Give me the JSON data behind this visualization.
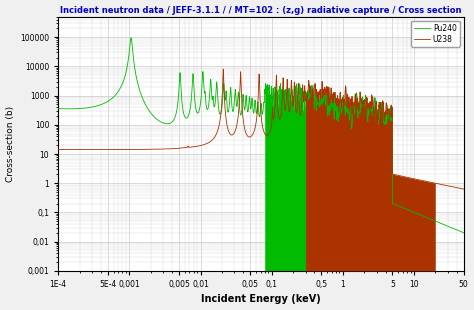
{
  "title": "Incident neutron data / JEFF-3.1.1 / / MT=102 : (z,g) radiative capture / Cross section",
  "xlabel": "Incident Energy (keV)",
  "ylabel": "Cross-section (b)",
  "title_color": "#0000cc",
  "xlabel_color": "#000000",
  "ylabel_color": "#000000",
  "bg_color": "#f0f0f0",
  "plot_bg_color": "#ffffff",
  "grid_color": "#cccccc",
  "legend_entries": [
    "Pu240",
    "U238"
  ],
  "pu240_color": "#00bb00",
  "u238_color": "#aa3300",
  "xtick_labels": [
    "1E-4",
    "5E-4",
    "0,001",
    "0,005",
    "0,01",
    "0,05",
    "0,1",
    "0,5",
    "1",
    "5",
    "10",
    "50"
  ],
  "xtick_values": [
    0.0001,
    0.0005,
    0.001,
    0.005,
    0.01,
    0.05,
    0.1,
    0.5,
    1,
    5,
    10,
    50
  ],
  "ytick_labels": [
    "0,001",
    "0,01",
    "0,1",
    "1",
    "10",
    "100",
    "1000",
    "10000",
    "100000"
  ],
  "ytick_values": [
    0.001,
    0.01,
    0.1,
    1,
    10,
    100,
    1000,
    10000,
    100000
  ],
  "xlim": [
    0.0001,
    50
  ],
  "ylim": [
    0.001,
    500000
  ]
}
